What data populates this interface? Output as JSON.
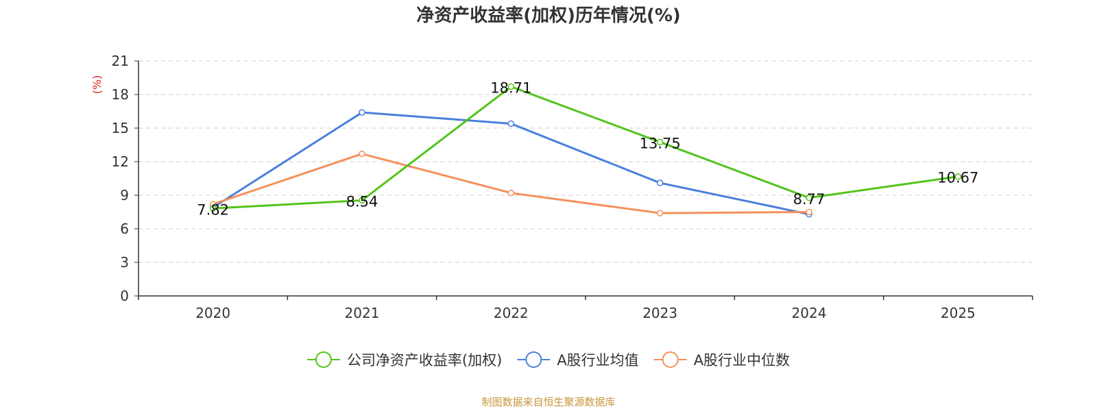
{
  "chart_data": {
    "type": "line",
    "title": "净资产收益率(加权)历年情况(%)",
    "ylabel": "(%)",
    "xlabel": "",
    "categories": [
      "2020",
      "2021",
      "2022",
      "2023",
      "2024",
      "2025"
    ],
    "ylim": [
      0,
      21
    ],
    "yticks": [
      0,
      3,
      6,
      9,
      12,
      15,
      18,
      21
    ],
    "grid": true,
    "legend_position": "bottom",
    "series": [
      {
        "name": "公司净资产收益率(加权)",
        "color": "#52c41a",
        "values": [
          7.82,
          8.54,
          18.71,
          13.75,
          8.77,
          10.67
        ],
        "labels": [
          "7.82",
          "8.54",
          "18.71",
          "13.75",
          "8.77",
          "10.67"
        ]
      },
      {
        "name": "A股行业均值",
        "color": "#4a7fdc",
        "values": [
          7.9,
          16.4,
          15.4,
          10.1,
          7.3,
          null
        ]
      },
      {
        "name": "A股行业中位数",
        "color": "#f5905a",
        "values": [
          8.2,
          12.7,
          9.2,
          7.4,
          7.5,
          null
        ]
      }
    ]
  },
  "source": "制图数据来自恒生聚源数据库",
  "colors": {
    "axis": "#333333",
    "grid": "#cccccc",
    "ylabel": "#e02020",
    "source": "#c8963c"
  }
}
